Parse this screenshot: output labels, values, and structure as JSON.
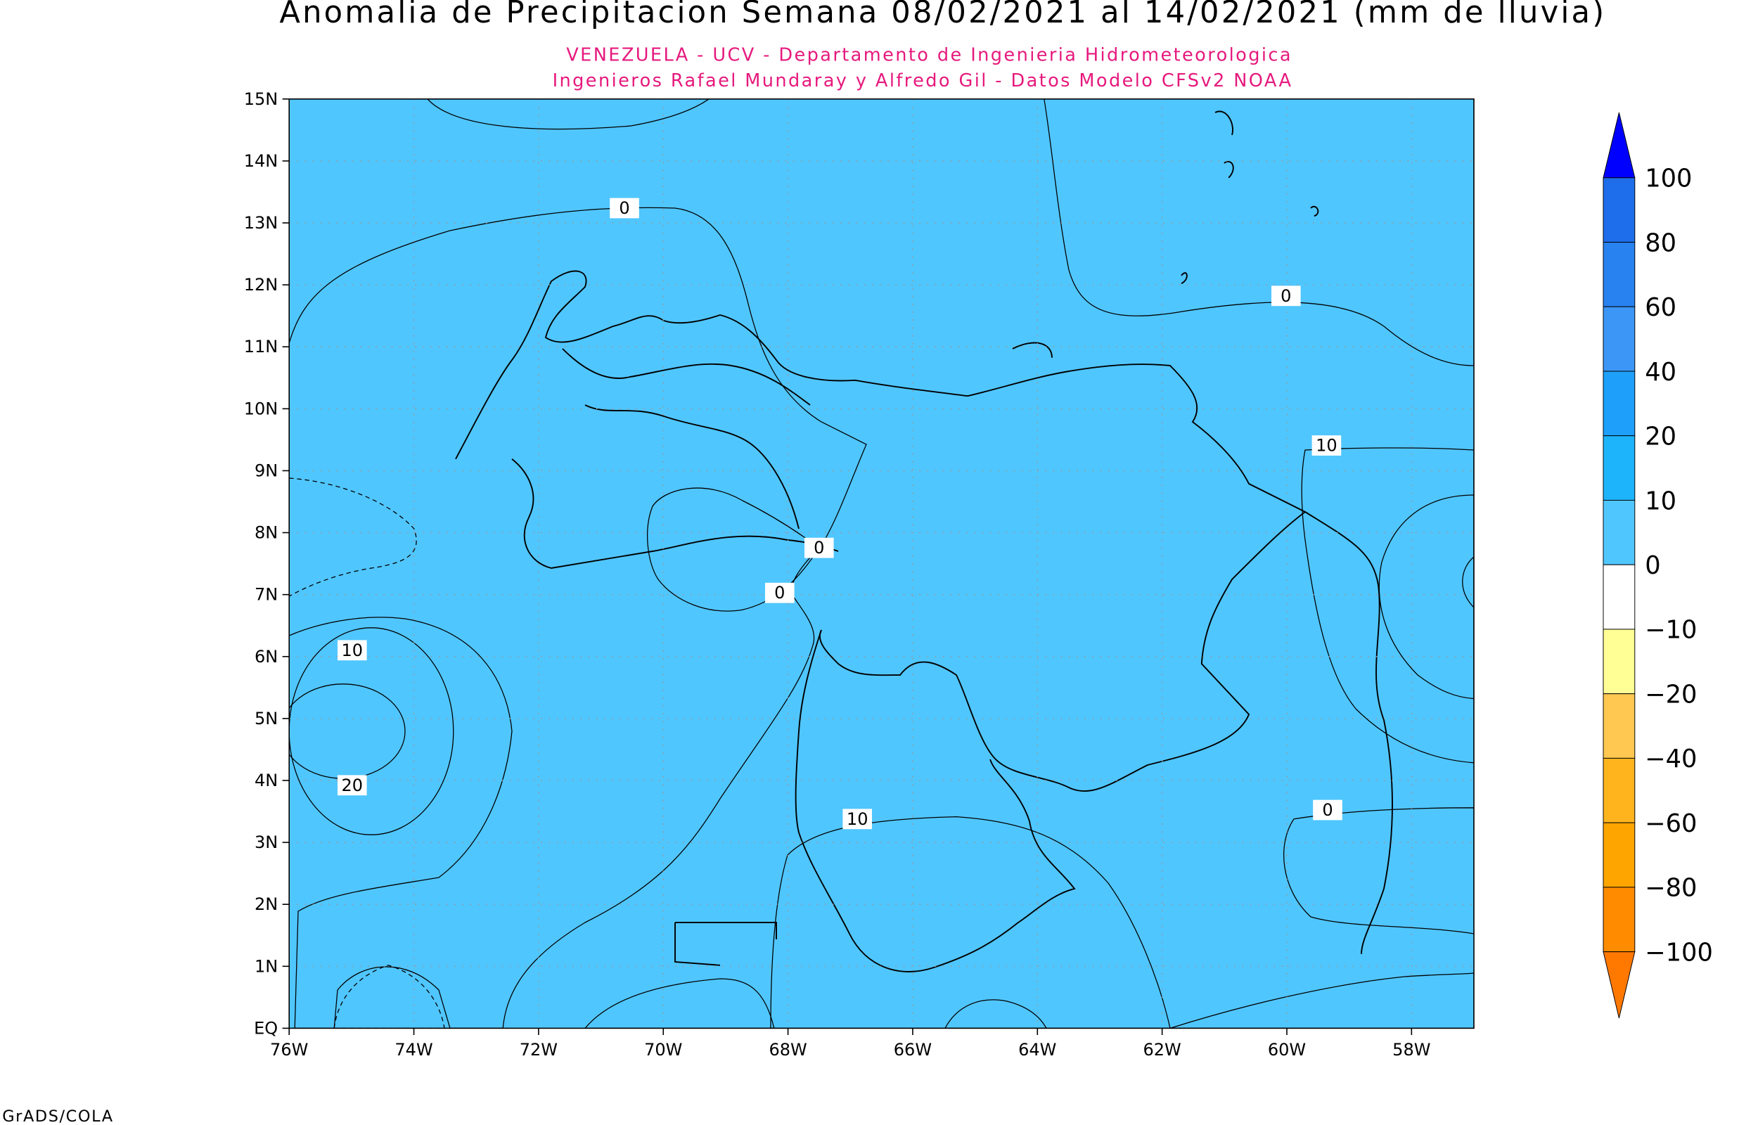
{
  "header": {
    "title": "Anomalia de Precipitacion Semana 08/02/2021 al 14/02/2021 (mm de lluvia)",
    "subtitle_lines": [
      "VENEZUELA - UCV - Departamento de Ingenieria Hidrometeorologica",
      "Ingenieros Rafael Mundaray y Alfredo Gil - Datos Modelo CFSv2 NOAA"
    ]
  },
  "axes": {
    "lat_labels": [
      "EQ",
      "1N",
      "2N",
      "3N",
      "4N",
      "5N",
      "6N",
      "7N",
      "8N",
      "9N",
      "10N",
      "11N",
      "12N",
      "13N",
      "14N",
      "15N"
    ],
    "lon_labels": [
      "76W",
      "74W",
      "72W",
      "70W",
      "68W",
      "66W",
      "64W",
      "62W",
      "60W",
      "58W"
    ]
  },
  "contour_labels": [
    "0",
    "0",
    "0",
    "0",
    "0",
    "10",
    "10",
    "10",
    "20"
  ],
  "colorbar": {
    "labels": [
      "100",
      "80",
      "60",
      "40",
      "20",
      "10",
      "0",
      "−10",
      "−20",
      "−40",
      "−60",
      "−80",
      "−100"
    ]
  },
  "footer": "GrADS/COLA"
}
